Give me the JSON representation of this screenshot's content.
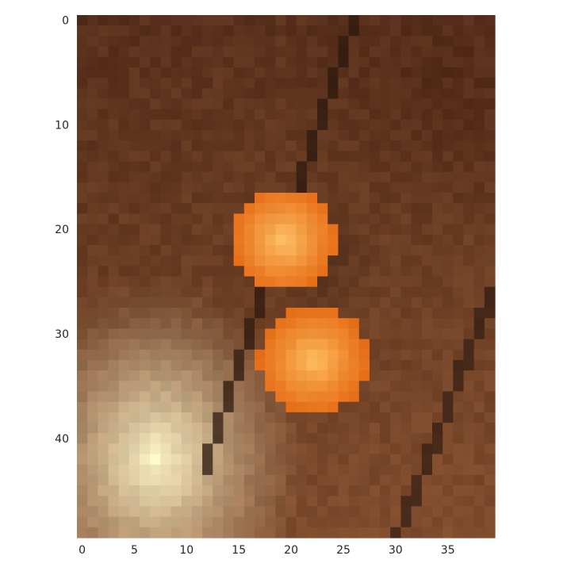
{
  "chart_data": {
    "type": "heatmap",
    "title": "",
    "xlabel": "",
    "ylabel": "",
    "xlim": [
      -0.5,
      39.5
    ],
    "ylim": [
      49.5,
      -0.5
    ],
    "grid": false,
    "x_ticks": [
      0,
      5,
      10,
      15,
      20,
      25,
      30,
      35
    ],
    "y_ticks": [
      0,
      10,
      20,
      30,
      40
    ],
    "x_tick_labels": [
      "0",
      "5",
      "10",
      "15",
      "20",
      "25",
      "30",
      "35"
    ],
    "y_tick_labels": [
      "0",
      "10",
      "20",
      "30",
      "40"
    ],
    "image_size": [
      40,
      50
    ],
    "content": "pixelated photo: brown background, two orange spheres near columns 19 and 22 (rows 20 and 32), bright cream glow at lower left, dark diagonal lines"
  }
}
